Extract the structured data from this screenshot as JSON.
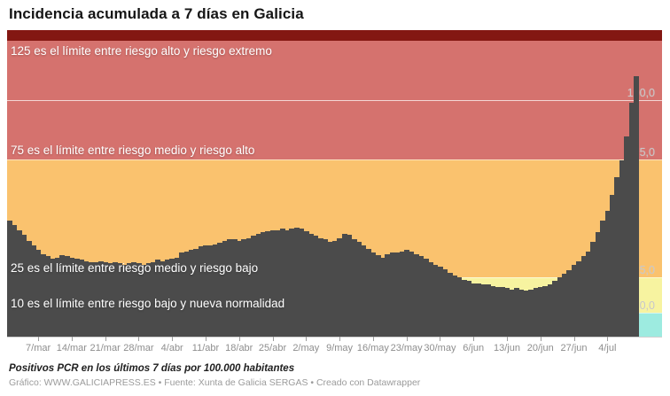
{
  "title": "Incidencia acumulada a 7 días en Galicia",
  "footer": {
    "note": "Positivos PCR en los últimos 7 días por 100.000 habitantes",
    "credit": "Gráfico: WWW.GALICIAPRESS.ES • Fuente: Xunta de Galicia SERGAS • Creado con Datawrapper"
  },
  "chart_data": {
    "type": "bar",
    "title": "Incidencia acumulada a 7 días en Galicia",
    "ylabel": "Positivos PCR en los últimos 7 días por 100.000 habitantes",
    "frequency": "daily",
    "ylim": [
      0,
      129.5
    ],
    "bar_color": "#4b4b4b",
    "x_tick_labels": [
      "7/mar",
      "14/mar",
      "21/mar",
      "28/mar",
      "4/abr",
      "11/abr",
      "18/abr",
      "25/abr",
      "2/may",
      "9/may",
      "16/may",
      "23/may",
      "30/may",
      "6/jun",
      "13/jun",
      "20/jun",
      "27/jun",
      "4/jul"
    ],
    "first_tick_bar_index": 6,
    "bars_per_tick": 7,
    "values": [
      49,
      47,
      45,
      43,
      40.5,
      38.5,
      36.5,
      35,
      34,
      33,
      33.5,
      34.5,
      34,
      33.5,
      33,
      32.5,
      32,
      31.5,
      31.5,
      32,
      31.5,
      31,
      31.5,
      31,
      30.5,
      31,
      31.5,
      31,
      30.5,
      31,
      31.5,
      32.5,
      32,
      32.5,
      33,
      33.5,
      35.5,
      36,
      36.5,
      37,
      38,
      38.5,
      38.5,
      39,
      39.5,
      40.5,
      41,
      41,
      40.5,
      41,
      41.5,
      42.5,
      43.5,
      44,
      44.5,
      45,
      45,
      45.5,
      45,
      45.5,
      46,
      45.5,
      44.5,
      43.5,
      42.5,
      41.5,
      41,
      40,
      40.5,
      41.5,
      43.5,
      43,
      41,
      40,
      38.5,
      37,
      35.5,
      34.5,
      33.5,
      35,
      35.5,
      35.5,
      36,
      36.5,
      36,
      35,
      34,
      33,
      31.5,
      30.5,
      29.5,
      28.5,
      27,
      26,
      25,
      24,
      23.5,
      22.5,
      22.5,
      22,
      22,
      21.5,
      21,
      21,
      20.5,
      20,
      20.5,
      20,
      19.5,
      20,
      20.5,
      21,
      21.5,
      22,
      23.5,
      25,
      26.5,
      28,
      30.5,
      32,
      34,
      36,
      40,
      44,
      49,
      53,
      60,
      67.5,
      74.5,
      84.5,
      99,
      110
    ],
    "bands": [
      {
        "from": 125,
        "to": 129.5,
        "color": "#831712"
      },
      {
        "from": 75,
        "to": 125,
        "color": "#d5726e"
      },
      {
        "from": 25,
        "to": 75,
        "color": "#fac26e"
      },
      {
        "from": 10,
        "to": 25,
        "color": "#f7f3a0"
      },
      {
        "from": 0,
        "to": 10,
        "color": "#9debe0"
      }
    ],
    "gridlines": [
      100,
      75,
      25,
      10
    ],
    "right_axis_labels": [
      {
        "text": "100,0",
        "value": 100
      },
      {
        "text": "75,0",
        "value": 75
      },
      {
        "text": "25,0",
        "value": 25
      },
      {
        "text": "10,0",
        "value": 10
      }
    ],
    "annotations": [
      {
        "value": 125,
        "placement": "below",
        "text": "125 es el límite entre riesgo alto y riesgo extremo"
      },
      {
        "value": 75,
        "placement": "above",
        "text": "75 es el límite entre riesgo medio y riesgo alto"
      },
      {
        "value": 25,
        "placement": "above",
        "text": "25 es el límite entre riesgo medio y riesgo bajo"
      },
      {
        "value": 10,
        "placement": "above",
        "text": "10 es el límite entre riesgo bajo y nueva normalidad"
      }
    ],
    "legend_position": "none",
    "grid": "horizontal-on-bands"
  }
}
